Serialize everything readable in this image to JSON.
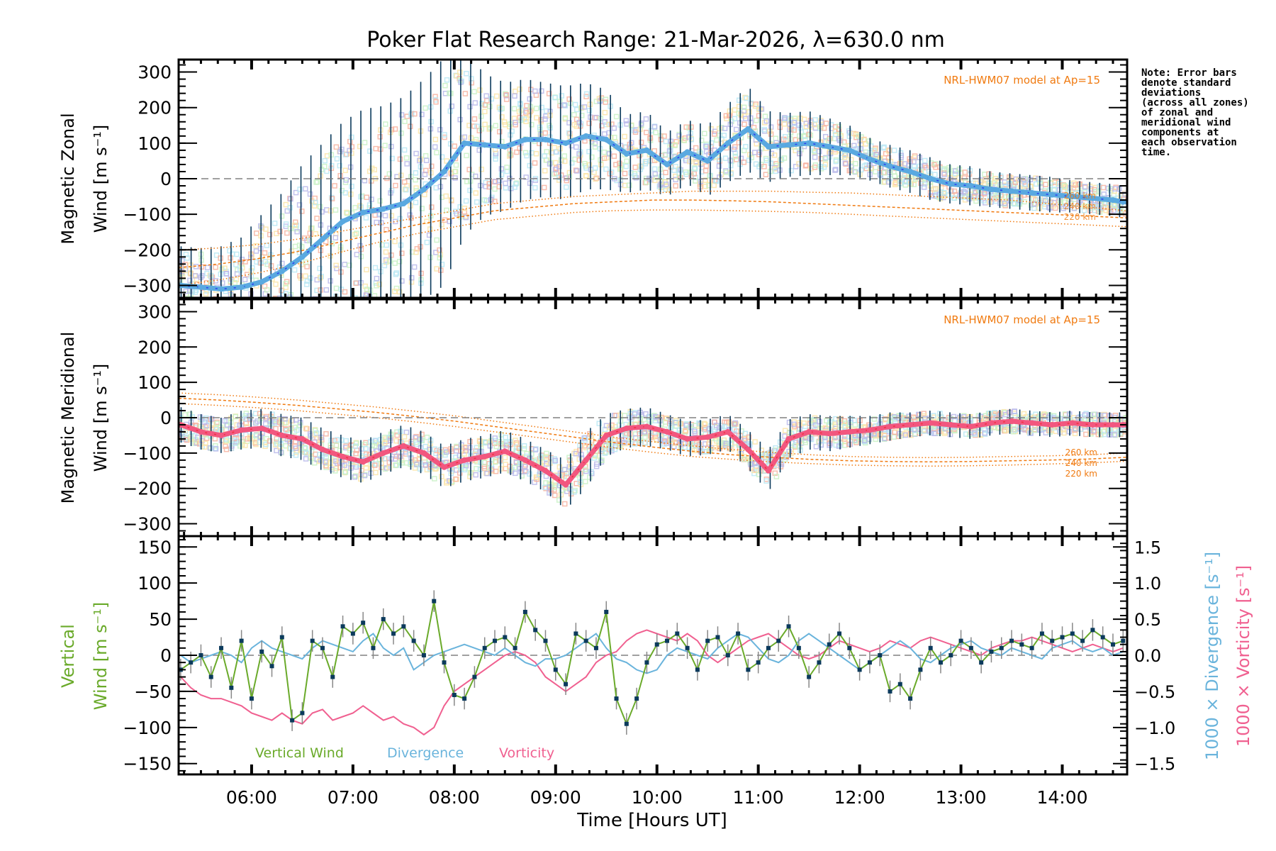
{
  "title": "Poker Flat Research Range: 21-Mar-2026, λ=630.0 nm",
  "note": "Note: Error bars\ndenote standard\ndeviations\n(across all zones)\nof zonal and\nmeridional wind\ncomponents at\neach observation\ntime.",
  "colors": {
    "zonal_line": "#5aa9e0",
    "zonal_line_dark": "#2a3df0",
    "meridional_line": "#f2577f",
    "meridional_line_dark": "#f03040",
    "errorbar": "#0b3a5c",
    "model": "#f07a10",
    "vertical": "#6aaa2a",
    "vertical_point": "#0b3a5c",
    "vertical_err": "#888888",
    "divergence": "#6ab4dc",
    "vorticity": "#f06090",
    "zone_palette": [
      "#f7b3a0",
      "#fbe5a8",
      "#c9f2c6",
      "#b9e8f4",
      "#b8b8ea"
    ]
  },
  "chart_data": [
    {
      "type": "line",
      "id": "zonal",
      "ylabel_line1": "Magnetic Zonal",
      "ylabel_line2": "Wind [m s⁻¹]",
      "ylim": [
        -335,
        335
      ],
      "yticks": [
        -300,
        -200,
        -100,
        0,
        100,
        200,
        300
      ],
      "annotation": "NRL-HWM07 model at Ap=15",
      "model_labels": [
        "260 km",
        "240 km",
        "220 km"
      ],
      "x_hours": [
        5.3,
        5.5,
        5.7,
        5.9,
        6.1,
        6.3,
        6.5,
        6.7,
        6.9,
        7.1,
        7.3,
        7.5,
        7.7,
        7.9,
        8.1,
        8.3,
        8.5,
        8.7,
        8.9,
        9.1,
        9.3,
        9.5,
        9.7,
        9.9,
        10.1,
        10.3,
        10.5,
        10.7,
        10.9,
        11.1,
        11.3,
        11.5,
        11.7,
        11.9,
        12.1,
        12.3,
        12.5,
        12.7,
        12.9,
        13.1,
        13.3,
        13.5,
        13.7,
        13.9,
        14.1,
        14.3,
        14.5,
        14.6
      ],
      "mean": [
        -300,
        -305,
        -310,
        -305,
        -290,
        -260,
        -220,
        -170,
        -120,
        -95,
        -85,
        -70,
        -30,
        20,
        100,
        95,
        90,
        110,
        110,
        100,
        120,
        110,
        70,
        80,
        40,
        75,
        50,
        100,
        140,
        90,
        95,
        100,
        90,
        80,
        55,
        35,
        20,
        0,
        -15,
        -20,
        -30,
        -35,
        -40,
        -45,
        -50,
        -55,
        -60,
        -65
      ],
      "spread": [
        110,
        110,
        120,
        140,
        190,
        220,
        260,
        270,
        280,
        290,
        290,
        300,
        310,
        320,
        260,
        200,
        180,
        170,
        160,
        160,
        150,
        140,
        110,
        110,
        90,
        90,
        100,
        110,
        120,
        100,
        90,
        90,
        80,
        70,
        60,
        60,
        60,
        60,
        55,
        55,
        50,
        50,
        50,
        50,
        45,
        45,
        45,
        45
      ],
      "model_series": [
        {
          "name": "260 km",
          "values": [
            -200,
            -195,
            -185,
            -170,
            -150,
            -130,
            -110,
            -90,
            -70,
            -60,
            -50,
            -45,
            -40,
            -35,
            -35,
            -35,
            -38,
            -40,
            -45,
            -50,
            -55,
            -60,
            -70,
            -80,
            -90
          ]
        },
        {
          "name": "240 km",
          "values": [
            -250,
            -240,
            -225,
            -205,
            -180,
            -155,
            -130,
            -110,
            -90,
            -80,
            -70,
            -65,
            -60,
            -60,
            -62,
            -65,
            -70,
            -75,
            -80,
            -85,
            -90,
            -95,
            -100,
            -105,
            -110
          ]
        },
        {
          "name": "220 km",
          "values": [
            -300,
            -285,
            -265,
            -240,
            -210,
            -180,
            -155,
            -135,
            -115,
            -105,
            -95,
            -90,
            -88,
            -88,
            -90,
            -92,
            -95,
            -100,
            -105,
            -110,
            -115,
            -120,
            -125,
            -130,
            -135
          ]
        }
      ]
    },
    {
      "type": "line",
      "id": "meridional",
      "ylabel_line1": "Magnetic Meridional",
      "ylabel_line2": "Wind [m s⁻¹]",
      "ylim": [
        -335,
        335
      ],
      "yticks": [
        -300,
        -200,
        -100,
        0,
        100,
        200,
        300
      ],
      "annotation": "NRL-HWM07 model at Ap=15",
      "model_labels": [
        "260 km",
        "240 km",
        "220 km"
      ],
      "x_hours": [
        5.3,
        5.5,
        5.7,
        5.9,
        6.1,
        6.3,
        6.5,
        6.7,
        6.9,
        7.1,
        7.3,
        7.5,
        7.7,
        7.9,
        8.1,
        8.3,
        8.5,
        8.7,
        8.9,
        9.1,
        9.3,
        9.5,
        9.7,
        9.9,
        10.1,
        10.3,
        10.5,
        10.7,
        10.9,
        11.1,
        11.3,
        11.5,
        11.7,
        11.9,
        12.1,
        12.3,
        12.5,
        12.7,
        12.9,
        13.1,
        13.3,
        13.5,
        13.7,
        13.9,
        14.1,
        14.3,
        14.5,
        14.6
      ],
      "mean": [
        -20,
        -40,
        -50,
        -35,
        -30,
        -50,
        -60,
        -90,
        -110,
        -125,
        -100,
        -80,
        -100,
        -140,
        -120,
        -110,
        -95,
        -120,
        -150,
        -190,
        -120,
        -50,
        -30,
        -25,
        -40,
        -60,
        -55,
        -40,
        -90,
        -150,
        -60,
        -40,
        -45,
        -40,
        -35,
        -25,
        -20,
        -15,
        -20,
        -25,
        -15,
        -10,
        -15,
        -20,
        -15,
        -20,
        -20,
        -20
      ],
      "spread": [
        50,
        50,
        50,
        55,
        55,
        60,
        60,
        60,
        60,
        60,
        60,
        60,
        60,
        60,
        60,
        60,
        60,
        60,
        60,
        70,
        80,
        60,
        55,
        55,
        50,
        50,
        50,
        50,
        55,
        60,
        55,
        50,
        50,
        45,
        40,
        40,
        35,
        35,
        35,
        35,
        35,
        35,
        35,
        35,
        35,
        35,
        35,
        35
      ],
      "model_series": [
        {
          "name": "260 km",
          "values": [
            70,
            65,
            58,
            50,
            40,
            30,
            18,
            5,
            -10,
            -25,
            -40,
            -55,
            -68,
            -80,
            -90,
            -98,
            -105,
            -110,
            -112,
            -113,
            -112,
            -110,
            -108,
            -105,
            -100
          ]
        },
        {
          "name": "240 km",
          "values": [
            55,
            50,
            43,
            35,
            25,
            15,
            3,
            -10,
            -25,
            -40,
            -55,
            -70,
            -83,
            -95,
            -105,
            -112,
            -118,
            -122,
            -124,
            -125,
            -124,
            -122,
            -120,
            -117,
            -112
          ]
        },
        {
          "name": "220 km",
          "values": [
            40,
            35,
            28,
            20,
            10,
            0,
            -12,
            -25,
            -40,
            -55,
            -70,
            -85,
            -98,
            -110,
            -118,
            -125,
            -130,
            -134,
            -136,
            -137,
            -136,
            -134,
            -131,
            -128,
            -123
          ]
        }
      ]
    },
    {
      "type": "line",
      "id": "vertical",
      "ylabel_line1": "Vertical",
      "ylabel_line2": "Wind [m s⁻¹]",
      "ylim": [
        -165,
        165
      ],
      "yticks": [
        -150,
        -100,
        -50,
        0,
        50,
        100,
        150
      ],
      "y2lim": [
        -1.65,
        1.65
      ],
      "y2ticks": [
        -1.5,
        -1.0,
        -0.5,
        0.0,
        0.5,
        1.0,
        1.5
      ],
      "y2label_divergence": "1000 × Divergence [s⁻¹]",
      "y2label_vorticity": "1000 × Vorticity [s⁻¹]",
      "legend": [
        "Vertical Wind",
        "Divergence",
        "Vorticity"
      ],
      "x_hours": [
        5.3,
        5.4,
        5.5,
        5.6,
        5.7,
        5.8,
        5.9,
        6.0,
        6.1,
        6.2,
        6.3,
        6.4,
        6.5,
        6.6,
        6.7,
        6.8,
        6.9,
        7.0,
        7.1,
        7.2,
        7.3,
        7.4,
        7.5,
        7.6,
        7.7,
        7.8,
        7.9,
        8.0,
        8.1,
        8.2,
        8.3,
        8.4,
        8.5,
        8.6,
        8.7,
        8.8,
        8.9,
        9.0,
        9.1,
        9.2,
        9.3,
        9.4,
        9.5,
        9.6,
        9.7,
        9.8,
        9.9,
        10.0,
        10.1,
        10.2,
        10.3,
        10.4,
        10.5,
        10.6,
        10.7,
        10.8,
        10.9,
        11.0,
        11.1,
        11.2,
        11.3,
        11.4,
        11.5,
        11.6,
        11.7,
        11.8,
        11.9,
        12.0,
        12.1,
        12.2,
        12.3,
        12.4,
        12.5,
        12.6,
        12.7,
        12.8,
        12.9,
        13.0,
        13.1,
        13.2,
        13.3,
        13.4,
        13.5,
        13.6,
        13.7,
        13.8,
        13.9,
        14.0,
        14.1,
        14.2,
        14.3,
        14.4,
        14.5,
        14.6
      ],
      "vertical_wind": [
        -20,
        -10,
        0,
        -30,
        10,
        -45,
        20,
        -60,
        5,
        -15,
        25,
        -90,
        -80,
        20,
        10,
        -30,
        40,
        30,
        45,
        10,
        50,
        30,
        40,
        20,
        0,
        75,
        -10,
        -55,
        -60,
        -30,
        10,
        20,
        25,
        10,
        60,
        35,
        20,
        -20,
        -40,
        30,
        20,
        10,
        60,
        -60,
        -95,
        -60,
        -10,
        15,
        20,
        30,
        10,
        -20,
        20,
        25,
        0,
        30,
        -20,
        -10,
        10,
        20,
        40,
        10,
        -30,
        -10,
        15,
        30,
        10,
        -20,
        -10,
        0,
        -50,
        -40,
        -60,
        -20,
        10,
        -10,
        0,
        20,
        10,
        -10,
        5,
        10,
        20,
        15,
        10,
        30,
        20,
        25,
        30,
        20,
        35,
        25,
        15,
        20
      ],
      "divergence": [
        0.0,
        -0.1,
        -0.05,
        0.0,
        0.05,
        0.0,
        -0.1,
        0.1,
        0.2,
        0.1,
        0.05,
        0.0,
        -0.05,
        0.1,
        0.2,
        0.15,
        0.1,
        0.05,
        0.2,
        0.3,
        0.1,
        0.0,
        0.1,
        -0.2,
        -0.1,
        0.0,
        0.05,
        0.1,
        0.15,
        0.1,
        0.05,
        0.0,
        0.1,
        0.0,
        -0.1,
        -0.15,
        -0.05,
        -0.05,
        0.0,
        0.1,
        0.2,
        0.3,
        0.1,
        -0.05,
        -0.1,
        -0.2,
        -0.25,
        -0.2,
        0.0,
        0.1,
        0.05,
        0.0,
        -0.05,
        0.1,
        0.2,
        0.3,
        0.25,
        0.1,
        -0.05,
        -0.1,
        0.0,
        0.2,
        0.3,
        0.2,
        0.1,
        0.0,
        -0.1,
        -0.2,
        -0.1,
        0.0,
        0.1,
        0.2,
        0.1,
        -0.05,
        -0.1,
        0.0,
        0.1,
        0.15,
        0.2,
        0.1,
        0.05,
        0.0,
        0.1,
        0.05,
        0.0,
        -0.05,
        0.1,
        0.15,
        0.2,
        0.1,
        0.05,
        0.1,
        0.0,
        0.05
      ],
      "vorticity": [
        -0.3,
        -0.45,
        -0.55,
        -0.6,
        -0.6,
        -0.65,
        -0.7,
        -0.8,
        -0.85,
        -0.9,
        -0.8,
        -0.9,
        -0.95,
        -0.8,
        -0.75,
        -0.9,
        -0.85,
        -0.8,
        -0.7,
        -0.8,
        -0.9,
        -0.85,
        -0.95,
        -1.0,
        -1.1,
        -1.0,
        -0.7,
        -0.5,
        -0.4,
        -0.3,
        -0.2,
        -0.1,
        0.0,
        0.05,
        0.0,
        -0.1,
        -0.3,
        -0.4,
        -0.5,
        -0.4,
        -0.3,
        -0.1,
        0.0,
        0.05,
        0.2,
        0.3,
        0.35,
        0.3,
        0.25,
        0.2,
        0.3,
        0.2,
        0.0,
        -0.1,
        0.0,
        0.1,
        0.2,
        0.25,
        0.3,
        0.2,
        0.1,
        0.0,
        -0.05,
        0.0,
        0.1,
        0.2,
        0.15,
        0.1,
        0.05,
        0.1,
        0.2,
        0.15,
        0.1,
        0.2,
        0.25,
        0.2,
        0.15,
        0.1,
        0.05,
        0.0,
        0.1,
        0.15,
        0.2,
        0.2,
        0.25,
        0.2,
        0.15,
        0.1,
        0.05,
        0.1,
        0.15,
        0.1,
        0.05,
        0.1
      ]
    }
  ],
  "xaxis": {
    "xlim_hours": [
      5.28,
      14.64
    ],
    "ticks": [
      {
        "h": 6,
        "label": "06:00"
      },
      {
        "h": 7,
        "label": "07:00"
      },
      {
        "h": 8,
        "label": "08:00"
      },
      {
        "h": 9,
        "label": "09:00"
      },
      {
        "h": 10,
        "label": "10:00"
      },
      {
        "h": 11,
        "label": "11:00"
      },
      {
        "h": 12,
        "label": "12:00"
      },
      {
        "h": 13,
        "label": "13:00"
      },
      {
        "h": 14,
        "label": "14:00"
      }
    ],
    "label": "Time [Hours UT]"
  }
}
